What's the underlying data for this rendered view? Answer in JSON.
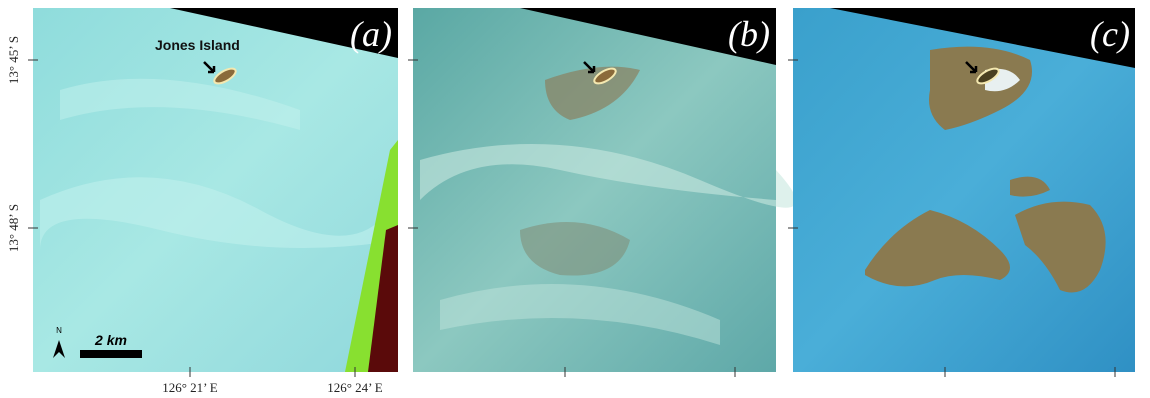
{
  "panels": [
    {
      "label": "(a)"
    },
    {
      "label": "(b)"
    },
    {
      "label": "(c)"
    }
  ],
  "annotation": "Jones Island",
  "north_arrow": "N",
  "scale_bar": "2 km",
  "y_axis_labels": [
    "13° 45’ S",
    "13° 48’ S"
  ],
  "x_axis_labels": [
    "126° 21’ E",
    "126° 24’ E"
  ]
}
